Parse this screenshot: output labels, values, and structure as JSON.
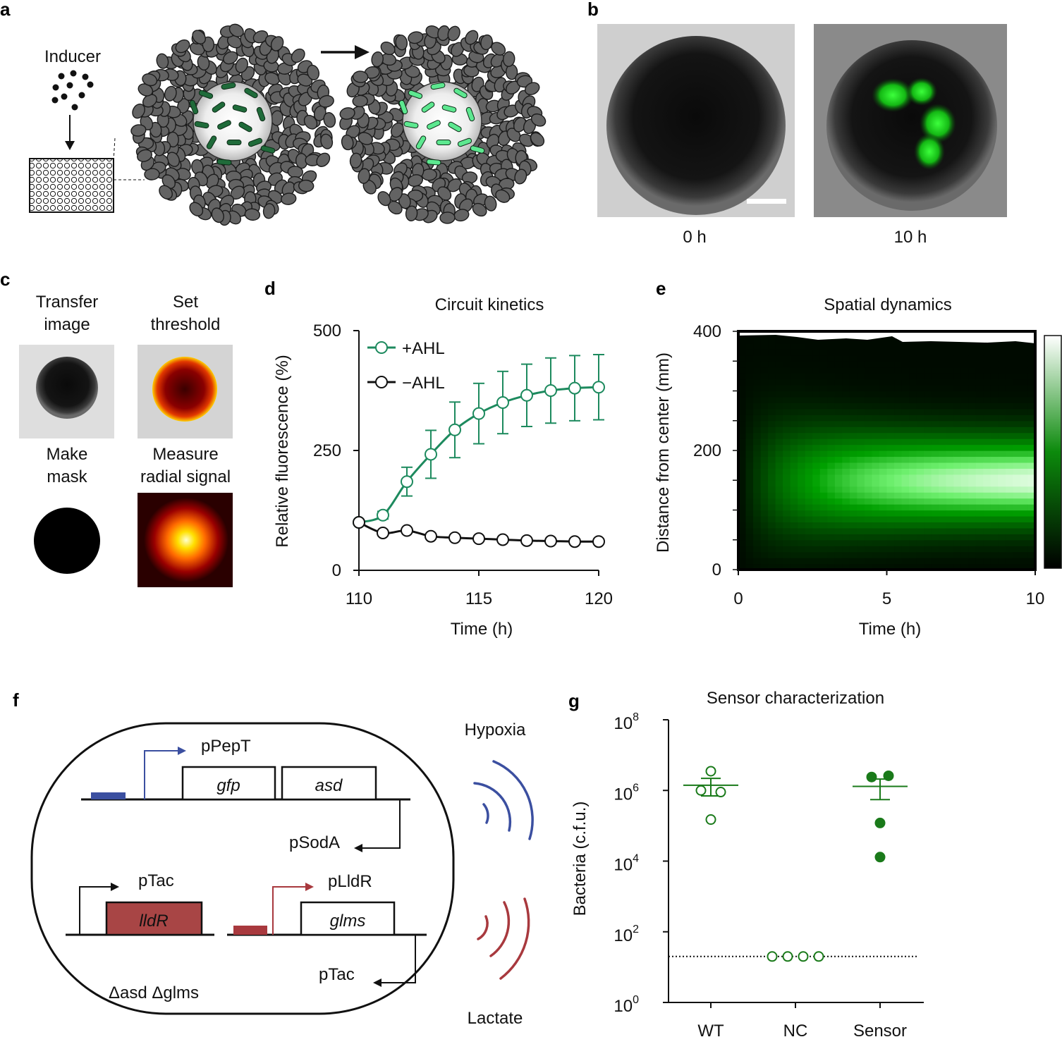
{
  "panels": {
    "a": {
      "letter": "a",
      "inducer_label": "Inducer",
      "colors": {
        "cells": "#636363",
        "bacteria_dark": "#1f6b3a",
        "bacteria_light": "#5de890"
      }
    },
    "b": {
      "letter": "b",
      "captions": [
        "0 h",
        "10 h"
      ]
    },
    "c": {
      "letter": "c",
      "steps": [
        {
          "line1": "Transfer",
          "line2": "image"
        },
        {
          "line1": "Set",
          "line2": "threshold"
        },
        {
          "line1": "Make",
          "line2": "mask"
        },
        {
          "line1": "Measure",
          "line2": "radial signal"
        }
      ]
    },
    "d": {
      "letter": "d",
      "title": "Circuit kinetics",
      "xlabel": "Time (h)",
      "ylabel": "Relative fluorescence (%)",
      "legend": [
        "+AHL",
        "−AHL"
      ]
    },
    "e": {
      "letter": "e",
      "title": "Spatial dynamics",
      "xlabel": "Time (h)",
      "ylabel": "Distance from center (mm)"
    },
    "f": {
      "letter": "f",
      "labels": {
        "pPepT": "pPepT",
        "gfp": "gfp",
        "asd": "asd",
        "pSodA": "pSodA",
        "pTac_top": "pTac",
        "lldR": "lldR",
        "pLldR": "pLldR",
        "glms": "glms",
        "pTac_bottom": "pTac",
        "genotype": "Δasd Δglms",
        "hypoxia": "Hypoxia",
        "lactate": "Lactate"
      },
      "colors": {
        "hypoxia": "#3b4fa0",
        "lactate": "#a8393e",
        "lldR_fill": "#a84545"
      }
    },
    "g": {
      "letter": "g",
      "title": "Sensor characterization",
      "ylabel": "Bacteria  (c.f.u.)"
    }
  },
  "chart_data": [
    {
      "panel": "d",
      "type": "line",
      "title": "Circuit kinetics",
      "xlabel": "Time (h)",
      "ylabel": "Relative fluorescence (%)",
      "xlim": [
        110,
        120
      ],
      "ylim": [
        0,
        500
      ],
      "xticks": [
        110,
        115,
        120
      ],
      "yticks": [
        0,
        250,
        500
      ],
      "x": [
        110,
        111,
        112,
        113,
        114,
        115,
        116,
        117,
        118,
        119,
        120
      ],
      "series": [
        {
          "name": "+AHL",
          "color": "#1d8a5e",
          "values": [
            100,
            115,
            185,
            242,
            293,
            327,
            350,
            365,
            375,
            380,
            382
          ],
          "errors": [
            0,
            8,
            30,
            50,
            58,
            63,
            65,
            65,
            68,
            68,
            68
          ]
        },
        {
          "name": "−AHL",
          "color": "#111111",
          "values": [
            100,
            78,
            83,
            71,
            68,
            66,
            64,
            62,
            61,
            60,
            60
          ],
          "errors": [
            0,
            0,
            0,
            0,
            0,
            0,
            0,
            0,
            0,
            0,
            0
          ]
        }
      ],
      "legend_position": "top-left"
    },
    {
      "panel": "e",
      "type": "heatmap",
      "title": "Spatial dynamics",
      "xlabel": "Time (h)",
      "ylabel": "Distance from center (mm)",
      "xlim": [
        0,
        10
      ],
      "ylim": [
        0,
        400
      ],
      "xticks": [
        0,
        5,
        10
      ],
      "yticks": [
        0,
        200,
        400
      ],
      "peak_distance": 150,
      "colormap": [
        "#000000",
        "#0c8a0c",
        "#ffffff"
      ],
      "colorbar": true
    },
    {
      "panel": "g",
      "type": "scatter",
      "title": "Sensor characterization",
      "ylabel": "Bacteria  (c.f.u.)",
      "yscale": "log",
      "ylim": [
        1,
        100000000
      ],
      "ytick_base": "10",
      "ytick_exponents": [
        "0",
        "2",
        "4",
        "6",
        "8"
      ],
      "categories": [
        "WT",
        "NC",
        "Sensor"
      ],
      "groups": [
        {
          "name": "WT",
          "filled": false,
          "points": [
            3500000,
            1000000,
            900000,
            150000
          ],
          "mean": 1400000,
          "sem_low": 700000,
          "sem_high": 2200000
        },
        {
          "name": "NC",
          "filled": false,
          "points": [
            20,
            20,
            20,
            20
          ]
        },
        {
          "name": "Sensor",
          "filled": true,
          "points": [
            2400000,
            2600000,
            120000,
            13000
          ],
          "mean": 1300000,
          "sem_low": 550000,
          "sem_high": 2100000
        }
      ],
      "detection_limit": 20,
      "color": "#1a7a1a"
    }
  ]
}
